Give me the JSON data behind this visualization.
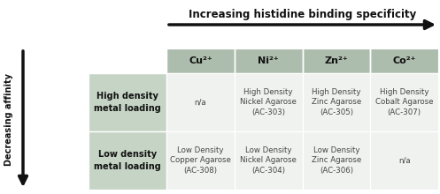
{
  "title_top": "Increasing histidine binding specificity",
  "title_left": "Decreasing affinity",
  "col_headers": [
    "Cu²⁺",
    "Ni²⁺",
    "Zn²⁺",
    "Co²⁺"
  ],
  "row_headers": [
    "High density\nmetal loading",
    "Low density\nmetal loading"
  ],
  "cells": [
    [
      "n/a",
      "High Density\nNickel Agarose\n(AC-303)",
      "High Density\nZinc Agarose\n(AC-305)",
      "High Density\nCobalt Agarose\n(AC-307)"
    ],
    [
      "Low Density\nCopper Agarose\n(AC-308)",
      "Low Density\nNickel Agarose\n(AC-304)",
      "Low Density\nZinc Agarose\n(AC-306)",
      "n/a"
    ]
  ],
  "header_bg": "#adbdad",
  "row_header_bg": "#c5d4c5",
  "cell_bg": "#f0f2f0",
  "arrow_color": "#111111",
  "text_color": "#444444",
  "header_text_color": "#111111",
  "border_color": "#ffffff",
  "fig_bg": "#ffffff",
  "n_cols": 4,
  "n_rows": 2
}
